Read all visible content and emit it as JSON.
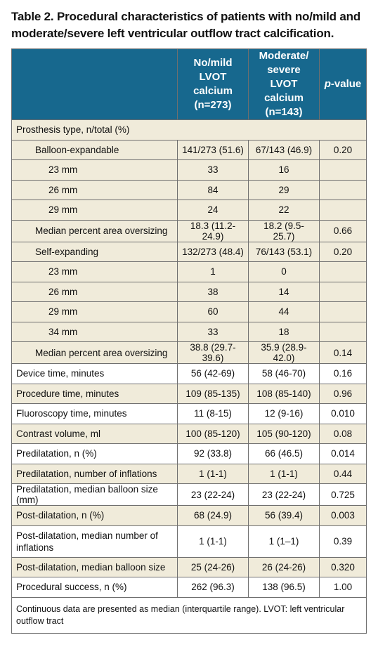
{
  "title": "Table 2. Procedural characteristics of patients with no/mild and moderate/severe left ventricular outflow tract calcification.",
  "header": {
    "col1": "",
    "col2": "No/mild LVOT calcium (n=273)",
    "col3": "Moderate/ severe LVOT calcium (n=143)",
    "col4_italic": "p",
    "col4_rest": "-value"
  },
  "rows": [
    {
      "label": "Prosthesis type, n/total (%)",
      "a": "",
      "b": "",
      "p": ""
    },
    {
      "label": "Balloon-expandable",
      "a": "141/273 (51.6)",
      "b": "67/143 (46.9)",
      "p": "0.20"
    },
    {
      "label": "23 mm",
      "a": "33",
      "b": "16",
      "p": ""
    },
    {
      "label": "26 mm",
      "a": "84",
      "b": "29",
      "p": ""
    },
    {
      "label": "29 mm",
      "a": "24",
      "b": "22",
      "p": ""
    },
    {
      "label": "Median percent area oversizing",
      "a": "18.3 (11.2-24.9)",
      "b": "18.2 (9.5-25.7)",
      "p": "0.66"
    },
    {
      "label": "Self-expanding",
      "a": "132/273 (48.4)",
      "b": "76/143 (53.1)",
      "p": "0.20"
    },
    {
      "label": "23 mm",
      "a": "1",
      "b": "0",
      "p": ""
    },
    {
      "label": "26 mm",
      "a": "38",
      "b": "14",
      "p": ""
    },
    {
      "label": "29 mm",
      "a": "60",
      "b": "44",
      "p": ""
    },
    {
      "label": "34 mm",
      "a": "33",
      "b": "18",
      "p": ""
    },
    {
      "label": "Median percent area oversizing",
      "a": "38.8 (29.7-39.6)",
      "b": "35.9 (28.9-42.0)",
      "p": "0.14"
    },
    {
      "label": "Device time, minutes",
      "a": "56 (42-69)",
      "b": "58 (46-70)",
      "p": "0.16"
    },
    {
      "label": "Procedure time, minutes",
      "a": "109 (85-135)",
      "b": "108 (85-140)",
      "p": "0.96"
    },
    {
      "label": "Fluoroscopy time, minutes",
      "a": "11 (8-15)",
      "b": "12 (9-16)",
      "p": "0.010"
    },
    {
      "label": "Contrast volume, ml",
      "a": "100 (85-120)",
      "b": "105 (90-120)",
      "p": "0.08"
    },
    {
      "label": "Predilatation, n (%)",
      "a": "92 (33.8)",
      "b": "66 (46.5)",
      "p": "0.014"
    },
    {
      "label": "Predilatation, number of inflations",
      "a": "1 (1-1)",
      "b": "1 (1-1)",
      "p": "0.44"
    },
    {
      "label": "Predilatation, median balloon size (mm)",
      "a": "23 (22-24)",
      "b": "23 (22-24)",
      "p": "0.725"
    },
    {
      "label": "Post-dilatation, n (%)",
      "a": "68 (24.9)",
      "b": "56 (39.4)",
      "p": "0.003"
    },
    {
      "label": "Post-dilatation, median number of inflations",
      "a": "1 (1-1)",
      "b": "1 (1–1)",
      "p": "0.39"
    },
    {
      "label": "Post-dilatation, median balloon size",
      "a": "25 (24-26)",
      "b": "26 (24-26)",
      "p": "0.320"
    },
    {
      "label": "Procedural success, n (%)",
      "a": "262 (96.3)",
      "b": "138 (96.5)",
      "p": "1.00"
    }
  ],
  "footnote": "Continuous data are presented as median (interquartile range). LVOT: left ventricular outflow tract"
}
